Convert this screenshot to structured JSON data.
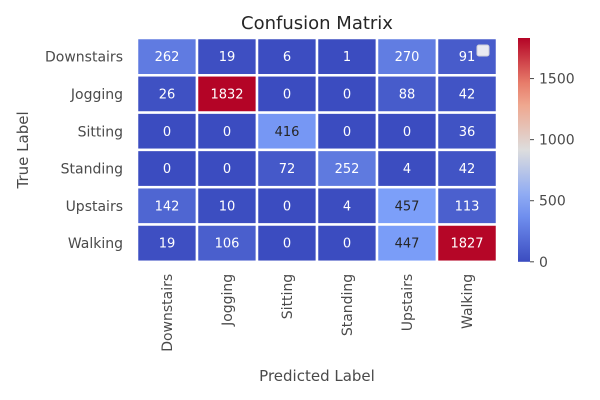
{
  "chart_data": {
    "type": "heatmap",
    "title": "Confusion Matrix",
    "xlabel": "Predicted Label",
    "ylabel": "True Label",
    "row_labels": [
      "Downstairs",
      "Jogging",
      "Sitting",
      "Standing",
      "Upstairs",
      "Walking"
    ],
    "col_labels": [
      "Downstairs",
      "Jogging",
      "Sitting",
      "Standing",
      "Upstairs",
      "Walking"
    ],
    "values": [
      [
        262,
        19,
        6,
        1,
        270,
        91
      ],
      [
        26,
        1832,
        0,
        0,
        88,
        42
      ],
      [
        0,
        0,
        416,
        0,
        0,
        36
      ],
      [
        0,
        0,
        72,
        252,
        4,
        42
      ],
      [
        142,
        10,
        0,
        4,
        457,
        113
      ],
      [
        19,
        106,
        0,
        0,
        447,
        1827
      ]
    ],
    "colormap": "coolwarm",
    "vmin": 0,
    "vmax": 1832,
    "colorbar_ticks": [
      "0",
      "500",
      "1000",
      "1500"
    ],
    "colorbar_tick_values": [
      0,
      500,
      1000,
      1500
    ],
    "legend": "top-right, empty"
  }
}
